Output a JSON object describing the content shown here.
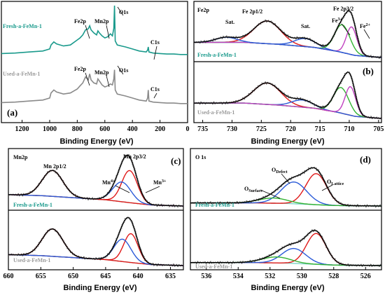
{
  "colors": {
    "raw": "#3a3a3a",
    "fit": "#000000",
    "fresh_label": "#1a9a8c",
    "used_label": "#9a9a9a",
    "survey_fresh": "#1a9a8c",
    "survey_used": "#8a8a8a",
    "background": "#7fd3c6",
    "red": "#e01919",
    "blue": "#2a5ad8",
    "green": "#33b233",
    "magenta": "#c040c0"
  },
  "chart_data": [
    {
      "panel": "(a)",
      "type": "line",
      "xlabel": "Binding Energy (eV)",
      "x_ticks": [
        1200,
        1000,
        800,
        600,
        400,
        200,
        0
      ],
      "xlim": [
        1350,
        0
      ],
      "annotations": [
        "Fe2p",
        "Mn2p",
        "O1s",
        "C1s"
      ],
      "series": [
        {
          "name": "Fresh-a-FeMn-1",
          "x": [
            1350,
            1250,
            1150,
            1050,
            1000,
            990,
            970,
            950,
            900,
            850,
            800,
            780,
            760,
            740,
            720,
            710,
            700,
            680,
            660,
            650,
            640,
            620,
            600,
            580,
            560,
            545,
            535,
            530,
            525,
            510,
            480,
            450,
            400,
            350,
            300,
            290,
            285,
            280,
            250,
            200,
            150,
            100,
            50,
            0
          ],
          "y": [
            0.05,
            0.06,
            0.08,
            0.1,
            0.14,
            0.22,
            0.28,
            0.24,
            0.2,
            0.22,
            0.32,
            0.36,
            0.42,
            0.52,
            0.54,
            0.6,
            0.52,
            0.46,
            0.42,
            0.5,
            0.46,
            0.4,
            0.36,
            0.38,
            0.44,
            0.4,
            0.55,
            1.0,
            0.3,
            0.22,
            0.2,
            0.18,
            0.14,
            0.1,
            0.08,
            0.12,
            0.18,
            0.08,
            0.06,
            0.05,
            0.04,
            0.04,
            0.03,
            0.03
          ]
        },
        {
          "name": "Used-a-FeMn-1",
          "x": [
            1350,
            1250,
            1150,
            1050,
            1000,
            990,
            970,
            950,
            900,
            850,
            800,
            780,
            760,
            740,
            720,
            710,
            700,
            680,
            660,
            650,
            640,
            620,
            600,
            580,
            560,
            545,
            535,
            530,
            525,
            510,
            480,
            450,
            400,
            350,
            300,
            290,
            285,
            280,
            250,
            200,
            150,
            100,
            50,
            0
          ],
          "y": [
            0.05,
            0.06,
            0.08,
            0.1,
            0.14,
            0.24,
            0.3,
            0.26,
            0.22,
            0.24,
            0.32,
            0.38,
            0.44,
            0.56,
            0.5,
            0.62,
            0.5,
            0.44,
            0.42,
            0.52,
            0.48,
            0.4,
            0.36,
            0.38,
            0.42,
            0.4,
            0.52,
            0.7,
            0.3,
            0.22,
            0.2,
            0.18,
            0.14,
            0.1,
            0.08,
            0.14,
            0.3,
            0.08,
            0.06,
            0.05,
            0.04,
            0.04,
            0.03,
            0.03
          ]
        }
      ]
    },
    {
      "panel": "(b)",
      "type": "line",
      "title": "Fe2p",
      "xlabel": "Binding Energy (eV)",
      "x_ticks": [
        735,
        730,
        725,
        720,
        715,
        710,
        705
      ],
      "xlim": [
        736.5,
        704.5
      ],
      "annotations": [
        "Sat.",
        "Fe 2p1/2",
        "Sat.",
        "Fe3+",
        "Fe 2p3/2",
        "Fe2+"
      ],
      "samples": [
        {
          "name": "Fresh-a-FeMn-1",
          "background": {
            "x": [
              736.5,
              728,
              722,
              716,
              712,
              709,
              704.5
            ],
            "y": [
              0.3,
              0.3,
              0.26,
              0.2,
              0.12,
              0.04,
              0.0
            ]
          },
          "peaks": [
            {
              "color": "red",
              "center": 724.0,
              "amp": 0.45,
              "width": 2.3
            },
            {
              "color": "blue",
              "center": 717.5,
              "amp": 0.16,
              "width": 1.8
            },
            {
              "color": "green",
              "center": 711.2,
              "amp": 0.55,
              "width": 1.3
            },
            {
              "color": "magenta",
              "center": 709.6,
              "amp": 0.55,
              "width": 0.9
            },
            {
              "color": "blue",
              "center": 731.0,
              "amp": 0.1,
              "width": 1.8
            }
          ]
        },
        {
          "name": "Used-a-FeMn-1",
          "background": {
            "x": [
              736.5,
              728,
              722,
              716,
              712,
              709,
              704.5
            ],
            "y": [
              0.3,
              0.3,
              0.26,
              0.2,
              0.12,
              0.04,
              0.0
            ]
          },
          "peaks": [
            {
              "color": "red",
              "center": 724.0,
              "amp": 0.42,
              "width": 2.3
            },
            {
              "color": "blue",
              "center": 718.0,
              "amp": 0.14,
              "width": 1.8
            },
            {
              "color": "green",
              "center": 711.4,
              "amp": 0.5,
              "width": 1.3
            },
            {
              "color": "magenta",
              "center": 709.8,
              "amp": 0.56,
              "width": 0.9
            }
          ]
        }
      ]
    },
    {
      "panel": "(c)",
      "type": "line",
      "title": "Mn2p",
      "xlabel": "Binding Energy (eV)",
      "x_ticks": [
        660,
        655,
        650,
        645,
        640,
        635
      ],
      "xlim": [
        660,
        633
      ],
      "annotations": [
        "Mn 2p1/2",
        "Mn 2p3/2",
        "Mn4+",
        "Mn3+"
      ],
      "samples": [
        {
          "name": "Fresh-a-FeMn-1",
          "background": {
            "x": [
              660,
              655,
              650,
              645,
              641,
              638,
              633
            ],
            "y": [
              0.22,
              0.2,
              0.16,
              0.12,
              0.06,
              0.02,
              0.0
            ]
          },
          "peaks": [
            {
              "color": "red",
              "center": 653.2,
              "amp": 0.5,
              "width": 1.6
            },
            {
              "color": "red",
              "center": 641.3,
              "amp": 0.62,
              "width": 1.2
            },
            {
              "color": "blue",
              "center": 642.5,
              "amp": 0.38,
              "width": 1.4
            }
          ]
        },
        {
          "name": "Used-a-FeMn-1",
          "background": {
            "x": [
              660,
              655,
              650,
              645,
              641,
              638,
              633
            ],
            "y": [
              0.22,
              0.2,
              0.16,
              0.12,
              0.06,
              0.02,
              0.0
            ]
          },
          "peaks": [
            {
              "color": "red",
              "center": 653.2,
              "amp": 0.55,
              "width": 1.6
            },
            {
              "color": "red",
              "center": 641.1,
              "amp": 0.58,
              "width": 1.1
            },
            {
              "color": "blue",
              "center": 642.4,
              "amp": 0.45,
              "width": 1.3
            }
          ]
        }
      ]
    },
    {
      "panel": "(d)",
      "type": "line",
      "title": "O 1s",
      "xlabel": "Binding Energy (eV)",
      "x_ticks": [
        536,
        534,
        532,
        530,
        528,
        526
      ],
      "xlim": [
        537,
        525
      ],
      "annotations": [
        "OSurface",
        "ODefect",
        "OLattice"
      ],
      "samples": [
        {
          "name": "Fresh-a-FeMn-1",
          "background": {
            "x": [
              537,
              533,
              531,
              529.5,
              528,
              525
            ],
            "y": [
              0.06,
              0.06,
              0.05,
              0.03,
              0.01,
              0.0
            ]
          },
          "peaks": [
            {
              "color": "red",
              "center": 529.1,
              "amp": 0.6,
              "width": 0.65
            },
            {
              "color": "blue",
              "center": 530.5,
              "amp": 0.42,
              "width": 0.8
            },
            {
              "color": "green",
              "center": 531.8,
              "amp": 0.1,
              "width": 0.9
            }
          ]
        },
        {
          "name": "Used-a-FeMn-1",
          "background": {
            "x": [
              537,
              533,
              531,
              529.5,
              528,
              525
            ],
            "y": [
              0.06,
              0.06,
              0.05,
              0.03,
              0.01,
              0.0
            ]
          },
          "peaks": [
            {
              "color": "red",
              "center": 529.1,
              "amp": 0.62,
              "width": 0.62
            },
            {
              "color": "blue",
              "center": 530.5,
              "amp": 0.3,
              "width": 0.75
            },
            {
              "color": "green",
              "center": 531.6,
              "amp": 0.12,
              "width": 0.9
            }
          ]
        }
      ]
    }
  ],
  "labels": {
    "a": {
      "panel": "(a)",
      "xlabel": "Binding Energy (eV)",
      "fresh": "Fresh-a-FeMn-1",
      "used": "Used-a-FeMn-1",
      "fe2p": "Fe2p",
      "mn2p": "Mn2p",
      "o1s": "O1s",
      "c1s": "C1s"
    },
    "b": {
      "panel": "(b)",
      "title": "Fe2p",
      "xlabel": "Binding Energy (eV)",
      "sat1": "Sat.",
      "fe2p12": "Fe 2p1/2",
      "sat2": "Sat.",
      "fe3": "Fe",
      "fe3sup": "3+",
      "fe2p32": "Fe 2p3/2",
      "fe2": "Fe",
      "fe2sup": "2+",
      "fresh": "Fresh-a-FeMn-1",
      "used": "Used-a-FeMn-1"
    },
    "c": {
      "panel": "(c)",
      "title": "Mn2p",
      "xlabel": "Binding Energy (eV)",
      "mn12": "Mn 2p1/2",
      "mn32": "Mn 2p3/2",
      "mn4": "Mn",
      "mn4sup": "4+",
      "mn3": "Mn",
      "mn3sup": "3+",
      "fresh": "Fresh-a-FeMn-1",
      "used": "Used-a-FeMn-1"
    },
    "d": {
      "panel": "(d)",
      "title": "O 1s",
      "xlabel": "Binding Energy (eV)",
      "osurf": "O",
      "osurfsub": "Surface",
      "odef": "O",
      "odefsub": "Defect",
      "olat": "O",
      "olatsub": "Lattice",
      "fresh": "Fresh-a-FeMn-1",
      "used": "Used-a-FeMn-1"
    }
  }
}
